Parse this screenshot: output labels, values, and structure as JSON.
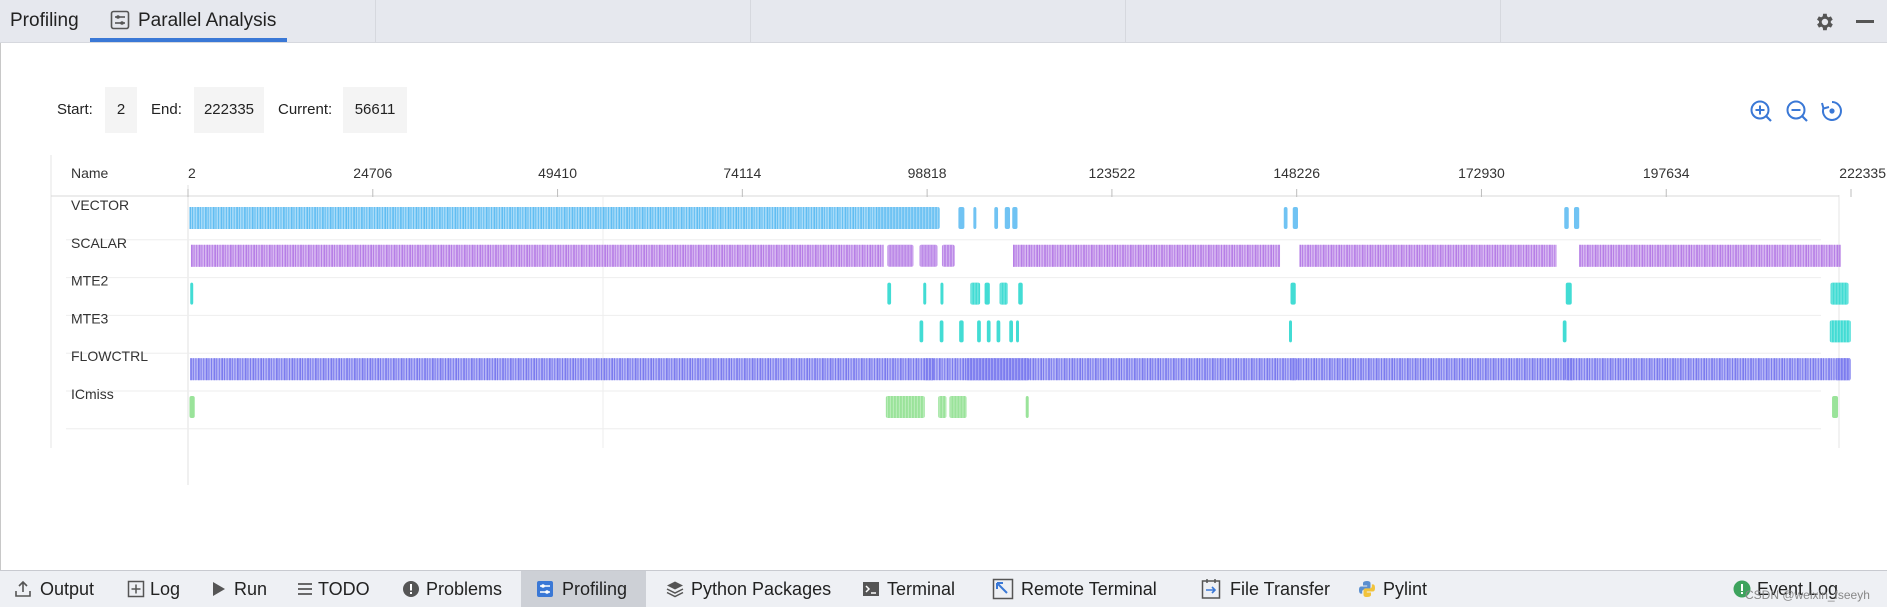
{
  "top_tabs": {
    "profiling_label": "Profiling",
    "parallel_label": "Parallel Analysis",
    "active_color": "#3a78d6"
  },
  "range": {
    "start_label": "Start:",
    "start_value": "2",
    "end_label": "End:",
    "end_value": "222335",
    "current_label": "Current:",
    "current_value": "56611"
  },
  "zoom_controls": [
    "zoom-in-icon",
    "zoom-out-icon",
    "reset-zoom-icon"
  ],
  "chart_data": {
    "type": "timeline",
    "name_header": "Name",
    "x_min": 2,
    "x_max": 222335,
    "ticks": [
      2,
      24706,
      49410,
      74114,
      98818,
      123522,
      148226,
      172930,
      197634,
      222335
    ],
    "tick_labels": [
      "2",
      "24706",
      "49410",
      "74114",
      "98818",
      "123522",
      "148226",
      "172930",
      "197634",
      "222335"
    ],
    "rows": [
      {
        "name": "VECTOR",
        "color": "#61bdf2",
        "dense": [
          [
            200,
            92000
          ]
        ],
        "spans": [
          [
            92000,
            100500
          ],
          [
            103000,
            103800
          ],
          [
            105000,
            105400
          ],
          [
            107800,
            108300
          ],
          [
            109200,
            109900
          ],
          [
            110200,
            110900
          ],
          [
            146500,
            147000
          ],
          [
            147700,
            148400
          ],
          [
            184000,
            184600
          ],
          [
            185300,
            186000
          ]
        ]
      },
      {
        "name": "SCALAR",
        "color": "#b67ee6",
        "dense": [
          [
            400,
            93000
          ],
          [
            110300,
            146000
          ],
          [
            148600,
            183000
          ],
          [
            186000,
            221000
          ]
        ],
        "spans": [
          [
            93500,
            97000
          ],
          [
            97800,
            100200
          ],
          [
            100800,
            102500
          ]
        ]
      },
      {
        "name": "MTE2",
        "color": "#2dd8cf",
        "dense": [],
        "spans": [
          [
            300,
            700
          ],
          [
            93500,
            94000
          ],
          [
            98300,
            98700
          ],
          [
            100600,
            101000
          ],
          [
            104600,
            105900
          ],
          [
            106500,
            107200
          ],
          [
            108500,
            109600
          ],
          [
            111000,
            111600
          ],
          [
            147400,
            148100
          ],
          [
            184200,
            185000
          ],
          [
            219600,
            222000
          ]
        ]
      },
      {
        "name": "MTE3",
        "color": "#2dd8cf",
        "dense": [],
        "spans": [
          [
            97800,
            98300
          ],
          [
            100500,
            101000
          ],
          [
            103100,
            103700
          ],
          [
            105500,
            106000
          ],
          [
            106800,
            107300
          ],
          [
            108100,
            108600
          ],
          [
            109800,
            110300
          ],
          [
            110700,
            111100
          ],
          [
            147200,
            147600
          ],
          [
            183800,
            184300
          ],
          [
            219500,
            222300
          ]
        ]
      },
      {
        "name": "FLOWCTRL",
        "color": "#7b7bee",
        "dense": [
          [
            300,
            222200
          ]
        ],
        "spans": [
          [
            98400,
            99800
          ],
          [
            103900,
            112500
          ],
          [
            147400,
            148300
          ],
          [
            184100,
            185300
          ],
          [
            220300,
            222300
          ]
        ]
      },
      {
        "name": "ICmiss",
        "color": "#8fe08f",
        "dense": [],
        "spans": [
          [
            200,
            900
          ],
          [
            93300,
            98500
          ],
          [
            100300,
            101400
          ],
          [
            101800,
            104100
          ],
          [
            112000,
            112400
          ],
          [
            219800,
            220600
          ]
        ]
      }
    ]
  },
  "bottom_tabs": [
    {
      "label": "Output",
      "icon": "upload-icon"
    },
    {
      "label": "Log",
      "icon": "plus-box-icon"
    },
    {
      "label": "Run",
      "icon": "play-icon"
    },
    {
      "label": "TODO",
      "icon": "list-icon"
    },
    {
      "label": "Problems",
      "icon": "alert-circle-icon"
    },
    {
      "label": "Profiling",
      "icon": "profiling-icon",
      "active": true
    },
    {
      "label": "Python Packages",
      "icon": "layers-icon"
    },
    {
      "label": "Terminal",
      "icon": "terminal-icon"
    },
    {
      "label": "Remote Terminal",
      "icon": "remote-terminal-icon"
    },
    {
      "label": "File Transfer",
      "icon": "file-transfer-icon"
    },
    {
      "label": "Pylint",
      "icon": "python-icon"
    },
    {
      "label": "Event Log",
      "icon": "event-log-icon"
    }
  ],
  "watermark": "CSDN @weixin_fseeyh"
}
